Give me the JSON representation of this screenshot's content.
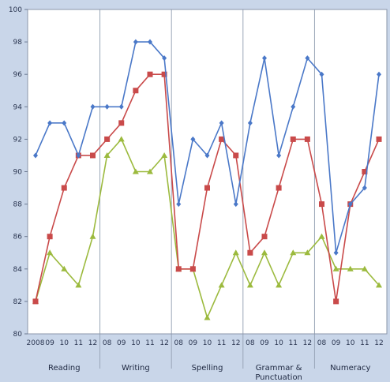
{
  "chart_data": {
    "type": "line",
    "x_tick_labels": [
      "2008",
      "09",
      "10",
      "11",
      "12",
      "08",
      "09",
      "10",
      "11",
      "12",
      "08",
      "09",
      "10",
      "11",
      "12",
      "08",
      "09",
      "10",
      "11",
      "12",
      "08",
      "09",
      "10",
      "11",
      "12"
    ],
    "groups": [
      "Reading",
      "Writing",
      "Spelling",
      "Grammar & Punctuation",
      "Numeracy"
    ],
    "ylim": [
      80,
      100
    ],
    "yticks": [
      80,
      82,
      84,
      86,
      88,
      90,
      92,
      94,
      96,
      98,
      100
    ],
    "grid": "vertical group dividers",
    "series": [
      {
        "color": "#4a78c8",
        "marker": "diamond",
        "values": [
          91,
          93,
          93,
          91,
          94,
          94,
          94,
          98,
          98,
          97,
          88,
          92,
          91,
          93,
          88,
          93,
          97,
          91,
          94,
          97,
          96,
          85,
          88,
          89,
          96
        ]
      },
      {
        "color": "#c94a4a",
        "marker": "square",
        "values": [
          82,
          86,
          89,
          91,
          91,
          92,
          93,
          95,
          96,
          96,
          84,
          84,
          89,
          92,
          91,
          85,
          86,
          89,
          92,
          92,
          88,
          82,
          88,
          90,
          92
        ]
      },
      {
        "color": "#9cba3e",
        "marker": "triangle",
        "values": [
          82,
          85,
          84,
          83,
          86,
          91,
          92,
          90,
          90,
          91,
          84,
          84,
          81,
          83,
          85,
          83,
          85,
          83,
          85,
          85,
          86,
          84,
          84,
          84,
          83
        ]
      }
    ]
  }
}
